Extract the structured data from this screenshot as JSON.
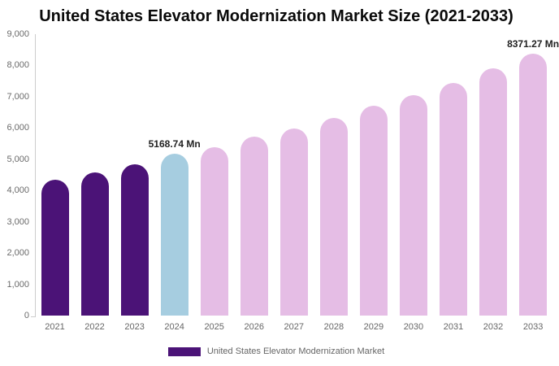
{
  "title": "United States Elevator Modernization Market Size (2021-2033)",
  "legend": {
    "label": "United States Elevator Modernization Market",
    "swatch_color": "#4b1377"
  },
  "colors": {
    "historical_bar": "#4b1377",
    "base_year_bar": "#a6cde0",
    "forecast_bar": "#e5bde5",
    "axis_line": "#cccccc",
    "tick_label_text": "#6b6b6b",
    "title_text": "#0a0a0a",
    "data_label_text": "#222222"
  },
  "chart_data": {
    "type": "bar",
    "title": "United States Elevator Modernization Market Size (2021-2033)",
    "xlabel": "",
    "ylabel": "",
    "unit": "Mn",
    "grid": false,
    "legend_position": "bottom",
    "ylim": [
      0,
      9000
    ],
    "ytick_interval": 1000,
    "ytick_labels": [
      "0",
      "1,000",
      "2,000",
      "3,000",
      "4,000",
      "5,000",
      "6,000",
      "7,000",
      "8,000",
      "9,000"
    ],
    "categories": [
      "2021",
      "2022",
      "2023",
      "2024",
      "2025",
      "2026",
      "2027",
      "2028",
      "2029",
      "2030",
      "2031",
      "2032",
      "2033"
    ],
    "values": [
      4340,
      4590,
      4850,
      5168.74,
      5390,
      5730,
      5980,
      6320,
      6710,
      7060,
      7440,
      7900,
      8371.27
    ],
    "bar_colors": [
      "#4b1377",
      "#4b1377",
      "#4b1377",
      "#a6cde0",
      "#e5bde5",
      "#e5bde5",
      "#e5bde5",
      "#e5bde5",
      "#e5bde5",
      "#e5bde5",
      "#e5bde5",
      "#e5bde5",
      "#e5bde5"
    ],
    "data_labels": [
      {
        "category": "2024",
        "text": "5168.74 Mn"
      },
      {
        "category": "2033",
        "text": "8371.27 Mn"
      }
    ]
  }
}
